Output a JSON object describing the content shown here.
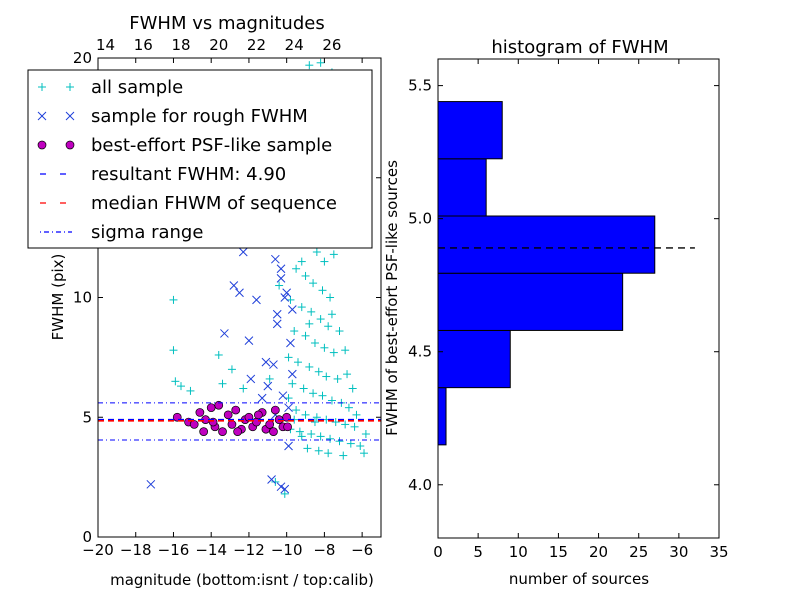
{
  "chart_data": [
    {
      "type": "scatter",
      "title": "FWHM vs magnitudes",
      "xlabel": "magnitude (bottom:isnt / top:calib)",
      "ylabel": "FWHM (pix)",
      "xlim": [
        -20,
        -5
      ],
      "ylim": [
        0,
        20
      ],
      "xticks": [
        -20,
        -18,
        -16,
        -14,
        -12,
        -10,
        -8,
        -6
      ],
      "xtick_labels": [
        "−20",
        "−18",
        "−16",
        "−14",
        "−12",
        "−10",
        "−8",
        "−6"
      ],
      "yticks": [
        0,
        5,
        10,
        15,
        20
      ],
      "ytick_labels": [
        "0",
        "5",
        "10",
        "15",
        "20"
      ],
      "top_xticks": [
        14,
        16,
        18,
        20,
        22,
        24,
        26
      ],
      "top_xtick_labels": [
        "14",
        "16",
        "18",
        "20",
        "22",
        "24",
        "26"
      ],
      "top_axis_offset": 33.6,
      "legend_location": "top-left",
      "series": [
        {
          "name": "all sample",
          "marker": "plus",
          "color": "#00bfbf",
          "points": [
            [
              -16.0,
              9.9
            ],
            [
              -16.0,
              7.8
            ],
            [
              -15.9,
              6.5
            ],
            [
              -15.6,
              6.3
            ],
            [
              -15.1,
              6.1
            ],
            [
              -13.6,
              7.6
            ],
            [
              -13.4,
              6.4
            ],
            [
              -12.9,
              7.0
            ],
            [
              -12.3,
              6.2
            ],
            [
              -10.9,
              6.6
            ],
            [
              -10.1,
              1.8
            ],
            [
              -10.6,
              2.3
            ],
            [
              -10.9,
              13.0
            ],
            [
              -10.4,
              10.5
            ],
            [
              -9.7,
              13.6
            ],
            [
              -9.6,
              16.8
            ],
            [
              -9.1,
              17.7
            ],
            [
              -8.8,
              19.7
            ],
            [
              -8.2,
              19.8
            ],
            [
              -7.6,
              19.4
            ],
            [
              -9.0,
              15.3
            ],
            [
              -8.6,
              14.0
            ],
            [
              -8.2,
              13.2
            ],
            [
              -9.3,
              12.8
            ],
            [
              -8.9,
              12.3
            ],
            [
              -8.4,
              11.9
            ],
            [
              -8.0,
              11.5
            ],
            [
              -9.5,
              11.2
            ],
            [
              -9.0,
              10.9
            ],
            [
              -8.6,
              10.6
            ],
            [
              -8.1,
              10.3
            ],
            [
              -7.7,
              10.0
            ],
            [
              -9.8,
              9.9
            ],
            [
              -9.2,
              9.6
            ],
            [
              -8.7,
              9.4
            ],
            [
              -8.2,
              9.1
            ],
            [
              -7.8,
              8.8
            ],
            [
              -9.6,
              8.6
            ],
            [
              -9.0,
              8.4
            ],
            [
              -8.5,
              8.1
            ],
            [
              -8.0,
              7.9
            ],
            [
              -7.5,
              7.7
            ],
            [
              -9.9,
              7.5
            ],
            [
              -9.4,
              7.3
            ],
            [
              -8.8,
              7.1
            ],
            [
              -8.3,
              6.9
            ],
            [
              -7.9,
              6.7
            ],
            [
              -7.3,
              6.6
            ],
            [
              -9.7,
              6.4
            ],
            [
              -9.1,
              6.2
            ],
            [
              -8.6,
              6.0
            ],
            [
              -8.1,
              5.9
            ],
            [
              -7.6,
              5.7
            ],
            [
              -7.1,
              5.6
            ],
            [
              -6.7,
              5.4
            ],
            [
              -9.5,
              5.3
            ],
            [
              -9.0,
              5.1
            ],
            [
              -8.4,
              5.0
            ],
            [
              -7.9,
              4.9
            ],
            [
              -7.4,
              4.8
            ],
            [
              -6.9,
              4.7
            ],
            [
              -6.4,
              4.6
            ],
            [
              -9.8,
              4.5
            ],
            [
              -9.3,
              4.4
            ],
            [
              -8.7,
              4.3
            ],
            [
              -8.2,
              4.2
            ],
            [
              -7.7,
              4.1
            ],
            [
              -7.2,
              4.0
            ],
            [
              -6.6,
              3.9
            ],
            [
              -6.1,
              3.8
            ],
            [
              -8.9,
              3.7
            ],
            [
              -8.3,
              3.6
            ],
            [
              -7.8,
              3.5
            ],
            [
              -7.0,
              3.4
            ],
            [
              -5.9,
              3.5
            ],
            [
              -8.6,
              15.9
            ],
            [
              -8.0,
              15.0
            ],
            [
              -7.4,
              14.4
            ],
            [
              -9.4,
              14.1
            ],
            [
              -8.5,
              12.9
            ],
            [
              -7.9,
              12.5
            ],
            [
              -7.5,
              11.8
            ],
            [
              -9.2,
              11.5
            ],
            [
              -8.8,
              8.9
            ],
            [
              -7.6,
              9.3
            ],
            [
              -7.2,
              8.6
            ],
            [
              -6.9,
              7.8
            ],
            [
              -6.8,
              6.8
            ],
            [
              -6.5,
              6.2
            ],
            [
              -6.3,
              5.1
            ],
            [
              -5.8,
              4.3
            ],
            [
              -9.9,
              5.8
            ],
            [
              -9.6,
              4.9
            ],
            [
              -9.2,
              4.2
            ],
            [
              -8.5,
              4.8
            ]
          ]
        },
        {
          "name": "sample for rough FWHM",
          "marker": "x",
          "color": "#1f3fd9",
          "points": [
            [
              -17.2,
              2.2
            ],
            [
              -13.3,
              8.5
            ],
            [
              -12.8,
              10.5
            ],
            [
              -12.5,
              10.2
            ],
            [
              -12.3,
              11.9
            ],
            [
              -12.0,
              8.2
            ],
            [
              -11.9,
              6.6
            ],
            [
              -11.6,
              9.9
            ],
            [
              -11.3,
              5.8
            ],
            [
              -11.1,
              7.3
            ],
            [
              -10.8,
              2.4
            ],
            [
              -10.5,
              8.9
            ],
            [
              -10.3,
              2.1
            ],
            [
              -10.1,
              2.0
            ],
            [
              -9.9,
              3.8
            ],
            [
              -10.6,
              11.6
            ],
            [
              -10.3,
              10.8
            ],
            [
              -10.4,
              12.5
            ],
            [
              -10.0,
              10.2
            ],
            [
              -9.7,
              9.5
            ],
            [
              -11.0,
              6.3
            ],
            [
              -10.7,
              7.2
            ],
            [
              -9.8,
              8.1
            ],
            [
              -10.5,
              9.3
            ],
            [
              -10.2,
              5.9
            ],
            [
              -9.9,
              5.4
            ],
            [
              -10.6,
              5.1
            ],
            [
              -9.7,
              6.8
            ],
            [
              -10.3,
              11.2
            ],
            [
              -10.1,
              10.0
            ]
          ]
        },
        {
          "name": "best-effort PSF-like sample",
          "marker": "circle",
          "color": "#bf00bf",
          "points": [
            [
              -15.8,
              5.0
            ],
            [
              -15.2,
              4.8
            ],
            [
              -14.9,
              4.7
            ],
            [
              -14.6,
              5.2
            ],
            [
              -14.3,
              4.9
            ],
            [
              -14.0,
              5.4
            ],
            [
              -13.8,
              4.6
            ],
            [
              -13.6,
              5.5
            ],
            [
              -13.4,
              4.4
            ],
            [
              -13.1,
              5.1
            ],
            [
              -12.9,
              4.7
            ],
            [
              -12.7,
              5.3
            ],
            [
              -12.4,
              4.5
            ],
            [
              -12.2,
              4.9
            ],
            [
              -12.0,
              5.0
            ],
            [
              -11.8,
              4.6
            ],
            [
              -11.6,
              4.8
            ],
            [
              -11.3,
              5.2
            ],
            [
              -11.1,
              4.5
            ],
            [
              -10.9,
              4.7
            ],
            [
              -10.6,
              5.3
            ],
            [
              -10.4,
              4.9
            ],
            [
              -10.2,
              4.6
            ],
            [
              -10.0,
              5.0
            ],
            [
              -14.4,
              4.4
            ],
            [
              -13.9,
              4.8
            ],
            [
              -12.6,
              4.4
            ],
            [
              -11.5,
              5.1
            ],
            [
              -10.7,
              4.4
            ],
            [
              -9.95,
              4.6
            ]
          ]
        },
        {
          "name": "resultant FWHM: 4.90",
          "type": "hline",
          "value": 4.9,
          "color": "#0000ff",
          "dash": "dashed"
        },
        {
          "name": "median FHWM of sequence",
          "type": "hline",
          "value": 4.85,
          "color": "#ff0000",
          "dash": "dashed"
        },
        {
          "name": "sigma range",
          "type": "hlines",
          "values": [
            4.05,
            5.6
          ],
          "color": "#0000ff",
          "dash": "dashdot"
        }
      ]
    },
    {
      "type": "bar",
      "orientation": "horizontal",
      "title": "histogram of FWHM",
      "xlabel": "number of sources",
      "ylabel": "FWHM of best-effort PSF-like sources",
      "xlim": [
        0,
        35
      ],
      "ylim": [
        3.8,
        5.6
      ],
      "xticks": [
        0,
        5,
        10,
        15,
        20,
        25,
        30,
        35
      ],
      "xtick_labels": [
        "0",
        "5",
        "10",
        "15",
        "20",
        "25",
        "30",
        "35"
      ],
      "yticks": [
        4.0,
        4.5,
        5.0,
        5.5
      ],
      "ytick_labels": [
        "4.0",
        "4.5",
        "5.0",
        "5.5"
      ],
      "bar_color": "#0000ff",
      "bins": [
        {
          "low": 4.15,
          "high": 4.365,
          "count": 1
        },
        {
          "low": 4.365,
          "high": 4.58,
          "count": 9
        },
        {
          "low": 4.58,
          "high": 4.795,
          "count": 23
        },
        {
          "low": 4.795,
          "high": 5.01,
          "count": 27
        },
        {
          "low": 5.01,
          "high": 5.225,
          "count": 6
        },
        {
          "low": 5.225,
          "high": 5.44,
          "count": 8
        }
      ],
      "reference_line": {
        "value": 4.89,
        "x_range": [
          0,
          32
        ],
        "color": "#000000",
        "dash": "dashed"
      }
    }
  ]
}
